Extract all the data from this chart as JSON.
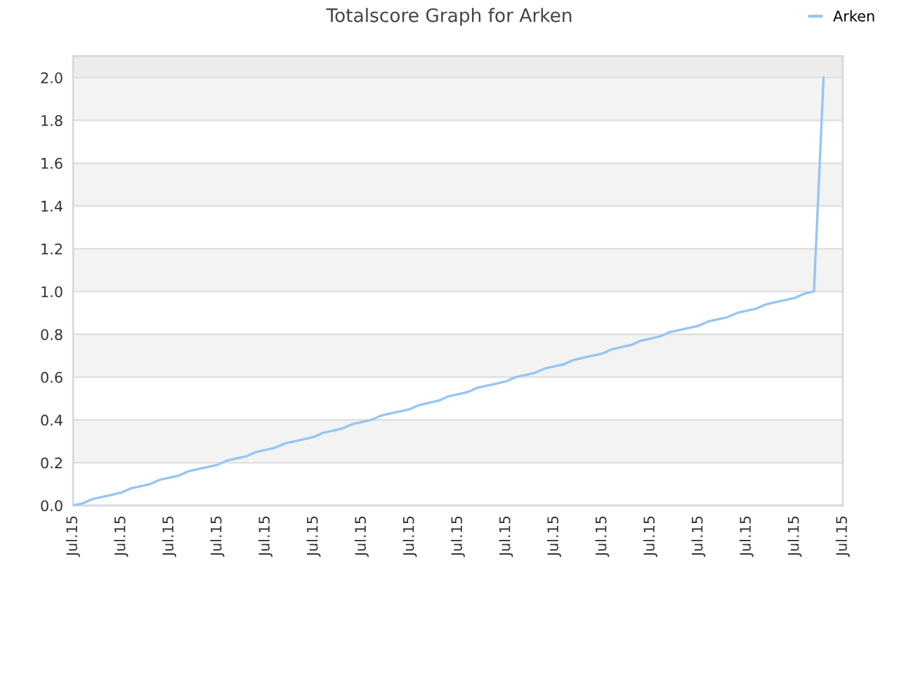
{
  "chart_data": {
    "type": "line",
    "title": "Totalscore Graph for Arken",
    "categories": [
      "Jul.15",
      null,
      null,
      null,
      null,
      "Jul.15",
      null,
      null,
      null,
      null,
      "Jul.15",
      null,
      null,
      null,
      null,
      "Jul.15",
      null,
      null,
      null,
      null,
      "Jul.15",
      null,
      null,
      null,
      null,
      "Jul.15",
      null,
      null,
      null,
      null,
      "Jul.15",
      null,
      null,
      null,
      null,
      "Jul.15",
      null,
      null,
      null,
      null,
      "Jul.15",
      null,
      null,
      null,
      null,
      "Jul.15",
      null,
      null,
      null,
      null,
      "Jul.15",
      null,
      null,
      null,
      null,
      "Jul.15",
      null,
      null,
      null,
      null,
      "Jul.15",
      null,
      null,
      null,
      null,
      "Jul.15",
      null,
      null,
      null,
      null,
      "Jul.15",
      null,
      null,
      null,
      null,
      "Jul.15",
      null,
      null,
      null,
      null,
      "Jul.15"
    ],
    "series": [
      {
        "name": "Arken",
        "color": "#95c5f5",
        "values": [
          0,
          0.01,
          0.03,
          0.04,
          0.05,
          0.06,
          0.08,
          0.09,
          0.1,
          0.12,
          0.13,
          0.14,
          0.16,
          0.17,
          0.18,
          0.19,
          0.21,
          0.22,
          0.23,
          0.25,
          0.26,
          0.27,
          0.29,
          0.3,
          0.31,
          0.32,
          0.34,
          0.35,
          0.36,
          0.38,
          0.39,
          0.4,
          0.42,
          0.43,
          0.44,
          0.45,
          0.47,
          0.48,
          0.49,
          0.51,
          0.52,
          0.53,
          0.55,
          0.56,
          0.57,
          0.58,
          0.6,
          0.61,
          0.62,
          0.64,
          0.65,
          0.66,
          0.68,
          0.69,
          0.7,
          0.71,
          0.73,
          0.74,
          0.75,
          0.77,
          0.78,
          0.79,
          0.81,
          0.82,
          0.83,
          0.84,
          0.86,
          0.87,
          0.88,
          0.9,
          0.91,
          0.92,
          0.94,
          0.95,
          0.96,
          0.97,
          0.99,
          1.0,
          2.0,
          null,
          null
        ]
      }
    ],
    "ylim": [
      0,
      2.1
    ],
    "yticks": [
      {
        "value": 0,
        "label": "0.0"
      },
      0.2,
      0.4,
      0.6,
      0.8,
      {
        "value": 1,
        "label": "1.0"
      },
      1.2,
      1.4,
      1.6,
      1.8,
      {
        "value": 2,
        "label": "2.0"
      }
    ],
    "bands": [
      {
        "axis": "y",
        "from": 0.2,
        "to": 0.4,
        "color": "#f3f3f3"
      },
      {
        "axis": "y",
        "from": 0.6,
        "to": 0.8,
        "color": "#f3f3f3"
      },
      {
        "axis": "y",
        "from": 1.0,
        "to": 1.2,
        "color": "#f3f3f3"
      },
      {
        "axis": "y",
        "from": 1.4,
        "to": 1.6,
        "color": "#f3f3f3"
      },
      {
        "axis": "y",
        "from": 1.8,
        "to": 2.0,
        "color": "#f3f3f3"
      },
      {
        "axis": "y",
        "from": 2.0,
        "to": 2.1,
        "color": "#ececec"
      }
    ],
    "grid": "y",
    "legend": "top right",
    "line_style": "solid"
  }
}
